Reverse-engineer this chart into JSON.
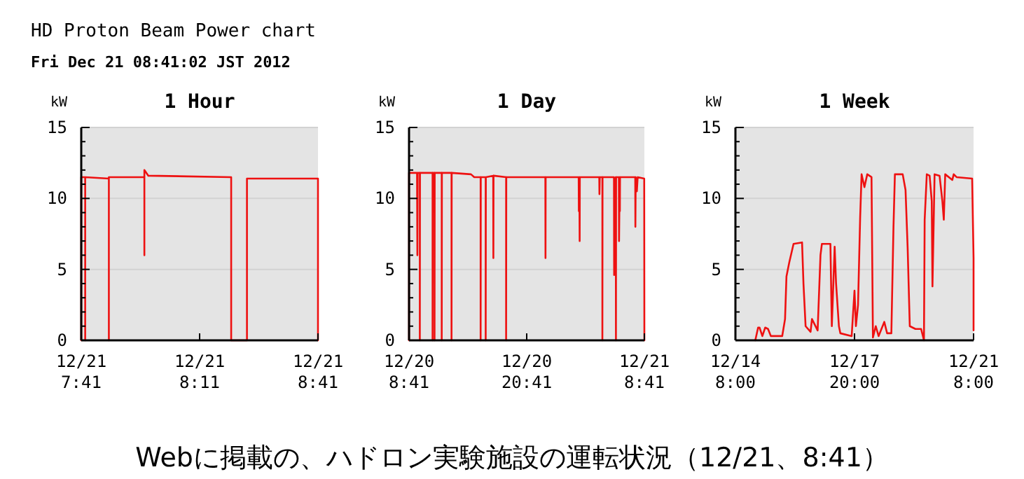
{
  "chart_data": [
    {
      "type": "line",
      "annotations": [
        "HD Proton Beam Power chart",
        "Fri Dec 21 08:41:02 JST 2012",
        "Webに掲載の、ハドロン実験施設の運転状況（12/21、8:41）"
      ],
      "title": "1 Hour",
      "ylabel": "kW",
      "color": "#ee1111",
      "grid": "y",
      "xlim": [
        "2012-12-21T07:41",
        "2012-12-21T08:41"
      ],
      "xticks": [
        {
          "value": "2012-12-21T07:41",
          "label": "12/21 7:41"
        },
        {
          "value": "2012-12-21T08:11",
          "label": "12/21 8:11"
        },
        {
          "value": "2012-12-21T08:41",
          "label": "12/21 8:41"
        }
      ],
      "ylim": [
        0,
        15
      ],
      "yticks": [
        0,
        {
          "value": 1,
          "label": null
        },
        {
          "value": 2,
          "label": null
        },
        {
          "value": 3,
          "label": null
        },
        {
          "value": 4,
          "label": null
        },
        5,
        {
          "value": 6,
          "label": null
        },
        {
          "value": 7,
          "label": null
        },
        {
          "value": 8,
          "label": null
        },
        {
          "value": 9,
          "label": null
        },
        10,
        {
          "value": 11,
          "label": null
        },
        {
          "value": 12,
          "label": null
        },
        {
          "value": 13,
          "label": null
        },
        {
          "value": 14,
          "label": null
        },
        15
      ],
      "x": [
        "2012-12-21T07:41",
        "2012-12-21T07:41",
        "2012-12-21T07:42",
        "2012-12-21T07:42",
        "2012-12-21T07:42",
        "2012-12-21T07:48",
        "2012-12-21T07:48",
        "2012-12-21T07:48",
        "2012-12-21T07:57",
        "2012-12-21T07:57",
        "2012-12-21T07:57",
        "2012-12-21T07:58",
        "2012-12-21T08:19",
        "2012-12-21T08:19",
        "2012-12-21T08:23",
        "2012-12-21T08:23",
        "2012-12-21T08:41",
        "2012-12-21T08:41"
      ],
      "values": [
        0,
        11.5,
        11.5,
        0,
        11.5,
        11.4,
        0,
        11.5,
        11.5,
        6,
        12,
        11.6,
        11.5,
        0,
        0,
        11.4,
        11.4,
        0
      ]
    },
    {
      "type": "line",
      "title": "1 Day",
      "ylabel": "kW",
      "color": "#ee1111",
      "grid": "y",
      "xlim": [
        "2012-12-20T08:41",
        "2012-12-21T08:41"
      ],
      "xticks": [
        {
          "value": "2012-12-20T08:41",
          "label": "12/20 8:41"
        },
        {
          "value": "2012-12-20T20:41",
          "label": "12/20 20:41"
        },
        {
          "value": "2012-12-21T08:41",
          "label": "12/21 8:41"
        }
      ],
      "ylim": [
        0,
        15
      ],
      "yticks": [
        0,
        {
          "value": 1,
          "label": null
        },
        {
          "value": 2,
          "label": null
        },
        {
          "value": 3,
          "label": null
        },
        {
          "value": 4,
          "label": null
        },
        5,
        {
          "value": 6,
          "label": null
        },
        {
          "value": 7,
          "label": null
        },
        {
          "value": 8,
          "label": null
        },
        {
          "value": 9,
          "label": null
        },
        10,
        {
          "value": 11,
          "label": null
        },
        {
          "value": 12,
          "label": null
        },
        {
          "value": 13,
          "label": null
        },
        {
          "value": 14,
          "label": null
        },
        15
      ],
      "x": [
        "2012-12-20T08:41",
        "2012-12-20T08:41",
        "2012-12-20T09:30",
        "2012-12-20T09:32",
        "2012-12-20T09:34",
        "2012-12-20T09:47",
        "2012-12-20T09:47",
        "2012-12-20T09:48",
        "2012-12-20T11:05",
        "2012-12-20T11:05",
        "2012-12-20T11:06",
        "2012-12-20T11:17",
        "2012-12-20T11:17",
        "2012-12-20T11:18",
        "2012-12-20T12:01",
        "2012-12-20T12:01",
        "2012-12-20T12:02",
        "2012-12-20T13:01",
        "2012-12-20T13:01",
        "2012-12-20T13:02",
        "2012-12-20T15:00",
        "2012-12-20T15:20",
        "2012-12-20T15:59",
        "2012-12-20T15:59",
        "2012-12-20T16:00",
        "2012-12-20T16:30",
        "2012-12-20T16:30",
        "2012-12-20T16:31",
        "2012-12-20T17:16",
        "2012-12-20T17:17",
        "2012-12-20T17:18",
        "2012-12-20T18:35",
        "2012-12-20T18:35",
        "2012-12-20T18:36",
        "2012-12-20T22:35",
        "2012-12-20T22:36",
        "2012-12-20T22:37",
        "2012-12-21T01:59",
        "2012-12-21T02:00",
        "2012-12-21T02:03",
        "2012-12-21T02:05",
        "2012-12-21T02:06",
        "2012-12-21T04:05",
        "2012-12-21T04:06",
        "2012-12-21T04:08",
        "2012-12-21T04:24",
        "2012-12-21T04:24",
        "2012-12-21T04:25",
        "2012-12-21T05:35",
        "2012-12-21T05:36",
        "2012-12-21T05:46",
        "2012-12-21T05:47",
        "2012-12-21T05:48",
        "2012-12-21T06:05",
        "2012-12-21T06:06",
        "2012-12-21T06:10",
        "2012-12-21T06:11",
        "2012-12-21T06:12",
        "2012-12-21T07:45",
        "2012-12-21T07:46",
        "2012-12-21T07:48",
        "2012-12-21T07:55",
        "2012-12-21T08:00",
        "2012-12-21T08:40",
        "2012-12-21T08:41"
      ],
      "values": [
        0,
        11.8,
        11.8,
        6,
        11.8,
        11.8,
        0,
        11.8,
        11.8,
        0,
        11.8,
        11.8,
        0,
        11.8,
        11.8,
        0,
        11.8,
        11.8,
        0,
        11.8,
        11.7,
        11.5,
        11.5,
        0,
        11.5,
        11.5,
        0,
        11.5,
        11.6,
        5.8,
        11.6,
        11.5,
        0,
        11.5,
        11.5,
        5.8,
        11.5,
        11.5,
        9.1,
        11.5,
        7,
        11.5,
        11.5,
        10.3,
        11.5,
        11.5,
        0,
        11.5,
        11.5,
        4.6,
        11.5,
        0,
        11.5,
        11.5,
        7,
        11.5,
        9.1,
        11.5,
        11.5,
        8,
        11.5,
        10.5,
        11.5,
        11.4,
        0
      ]
    },
    {
      "type": "line",
      "title": "1 Week",
      "ylabel": "kW",
      "color": "#ee1111",
      "grid": "y",
      "xlim": [
        "2012-12-14T08:00",
        "2012-12-21T08:00"
      ],
      "xticks": [
        {
          "value": "2012-12-14T08:00",
          "label": "12/14 8:00"
        },
        {
          "value": "2012-12-17T20:00",
          "label": "12/17 20:00"
        },
        {
          "value": "2012-12-21T08:00",
          "label": "12/21 8:00"
        }
      ],
      "ylim": [
        0,
        15
      ],
      "yticks": [
        0,
        {
          "value": 1,
          "label": null
        },
        {
          "value": 2,
          "label": null
        },
        {
          "value": 3,
          "label": null
        },
        {
          "value": 4,
          "label": null
        },
        5,
        {
          "value": 6,
          "label": null
        },
        {
          "value": 7,
          "label": null
        },
        {
          "value": 8,
          "label": null
        },
        {
          "value": 9,
          "label": null
        },
        10,
        {
          "value": 11,
          "label": null
        },
        {
          "value": 12,
          "label": null
        },
        {
          "value": 13,
          "label": null
        },
        {
          "value": 14,
          "label": null
        },
        15
      ],
      "x": [
        "2012-12-14T22:00",
        "2012-12-15T00:00",
        "2012-12-15T01:00",
        "2012-12-15T03:00",
        "2012-12-15T05:00",
        "2012-12-15T07:00",
        "2012-12-15T09:00",
        "2012-12-15T17:00",
        "2012-12-15T19:00",
        "2012-12-15T20:00",
        "2012-12-15T22:00",
        "2012-12-16T01:00",
        "2012-12-16T07:00",
        "2012-12-16T08:00",
        "2012-12-16T09:30",
        "2012-12-16T13:00",
        "2012-12-16T14:00",
        "2012-12-16T18:00",
        "2012-12-16T20:00",
        "2012-12-16T21:00",
        "2012-12-17T03:00",
        "2012-12-17T04:00",
        "2012-12-17T06:00",
        "2012-12-17T07:00",
        "2012-12-17T09:00",
        "2012-12-17T10:00",
        "2012-12-17T18:00",
        "2012-12-17T20:00",
        "2012-12-17T21:00",
        "2012-12-17T22:30",
        "2012-12-18T00:00",
        "2012-12-18T01:00",
        "2012-12-18T03:00",
        "2012-12-18T05:00",
        "2012-12-18T08:00",
        "2012-12-18T09:00",
        "2012-12-18T11:00",
        "2012-12-18T13:00",
        "2012-12-18T17:00",
        "2012-12-18T19:00",
        "2012-12-18T22:00",
        "2012-12-18T23:30",
        "2012-12-19T00:30",
        "2012-12-19T06:00",
        "2012-12-19T08:00",
        "2012-12-19T09:30",
        "2012-12-19T11:00",
        "2012-12-19T15:00",
        "2012-12-19T19:00",
        "2012-12-19T21:00",
        "2012-12-19T21:30",
        "2012-12-19T23:00",
        "2012-12-20T01:00",
        "2012-12-20T02:30",
        "2012-12-20T03:00",
        "2012-12-20T04:30",
        "2012-12-20T08:00",
        "2012-12-20T10:00",
        "2012-12-20T11:00",
        "2012-12-20T12:00",
        "2012-12-20T17:00",
        "2012-12-20T18:00",
        "2012-12-20T20:00",
        "2012-12-21T07:00",
        "2012-12-21T08:00",
        "2012-12-21T08:00"
      ],
      "values": [
        0,
        0.9,
        0.9,
        0.3,
        0.9,
        0.8,
        0.3,
        0.3,
        1.5,
        4.5,
        5.5,
        6.8,
        6.9,
        4,
        1,
        0.6,
        1.5,
        0.7,
        6,
        6.8,
        6.8,
        1,
        6.6,
        4,
        1,
        0.5,
        0.3,
        3.5,
        1,
        2.5,
        8.7,
        11.7,
        10.8,
        11.7,
        11.5,
        0.2,
        1,
        0.3,
        1.3,
        0.5,
        0.5,
        8,
        11.7,
        11.7,
        10.6,
        6.5,
        1,
        0.8,
        0.8,
        0,
        8.5,
        11.7,
        11.6,
        9.8,
        3.8,
        11.7,
        11.6,
        9.8,
        8.5,
        11.7,
        11.3,
        11.7,
        11.5,
        11.4,
        5.8,
        0.7
      ]
    }
  ]
}
